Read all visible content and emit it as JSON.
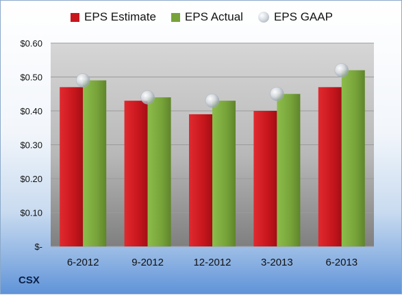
{
  "chart_data": {
    "type": "bar",
    "categories": [
      "6-2012",
      "9-2012",
      "12-2012",
      "3-2013",
      "6-2013"
    ],
    "series": [
      {
        "name": "EPS Estimate",
        "values": [
          0.47,
          0.43,
          0.39,
          0.4,
          0.47
        ],
        "color": "#c8161d",
        "kind": "bar"
      },
      {
        "name": "EPS Actual",
        "values": [
          0.49,
          0.44,
          0.43,
          0.45,
          0.52
        ],
        "color": "#77a33a",
        "kind": "bar"
      },
      {
        "name": "EPS GAAP",
        "values": [
          0.49,
          0.44,
          0.43,
          0.45,
          0.52
        ],
        "color": "#c9ced4",
        "kind": "marker"
      }
    ],
    "yticks": [
      {
        "value": 0,
        "label": "$-"
      },
      {
        "value": 0.1,
        "label": "$0.10"
      },
      {
        "value": 0.2,
        "label": "$0.20"
      },
      {
        "value": 0.3,
        "label": "$0.30"
      },
      {
        "value": 0.4,
        "label": "$0.40"
      },
      {
        "value": 0.5,
        "label": "$0.50"
      },
      {
        "value": 0.6,
        "label": "$0.60"
      }
    ],
    "ylim": [
      0,
      0.6
    ],
    "grid": true,
    "legend_position": "top",
    "title": "",
    "xlabel": "",
    "ylabel": ""
  },
  "ticker": "CSX"
}
